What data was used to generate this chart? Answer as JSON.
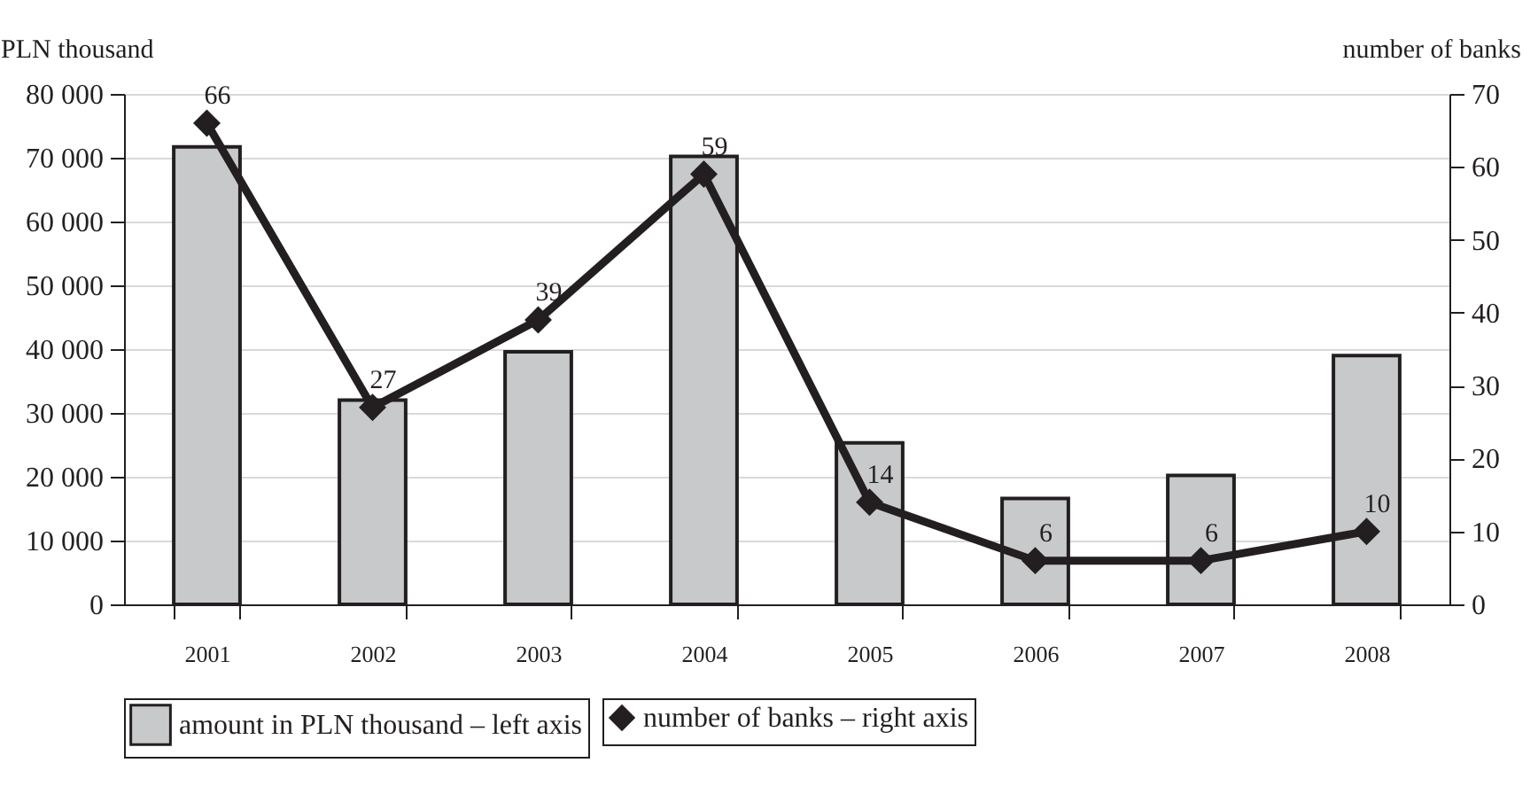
{
  "chart_data": {
    "type": "bar",
    "ylabel": "PLN thousand",
    "y2label": "number of banks",
    "categories": [
      "2001",
      "2002",
      "2003",
      "2004",
      "2005",
      "2006",
      "2007",
      "2008"
    ],
    "series": [
      {
        "name": "amount in PLN thousand – left axis",
        "color": "#c8c9cb",
        "values": [
          71700,
          32000,
          39600,
          70200,
          25300,
          16600,
          20200,
          39000
        ]
      },
      {
        "name": "number of banks – right axis",
        "type": "line",
        "axis": "y2",
        "color": "#231f20",
        "marker": "diamond",
        "values": [
          66,
          27,
          39,
          59,
          14,
          6,
          6,
          10
        ],
        "value_labels": [
          "66",
          "27",
          "39",
          "59",
          "14",
          "6",
          "6",
          "10"
        ]
      }
    ],
    "ylim": [
      0,
      80000
    ],
    "yticks": [
      {
        "value": 0,
        "label": "0"
      },
      {
        "value": 10000,
        "label": "10 000"
      },
      {
        "value": 20000,
        "label": "20 000"
      },
      {
        "value": 30000,
        "label": "30 000"
      },
      {
        "value": 40000,
        "label": "40 000"
      },
      {
        "value": 50000,
        "label": "50 000"
      },
      {
        "value": 60000,
        "label": "60 000"
      },
      {
        "value": 70000,
        "label": "70 000"
      },
      {
        "value": 80000,
        "label": "80 000"
      }
    ],
    "y2lim": [
      0,
      70
    ],
    "y2ticks": [
      0,
      10,
      20,
      30,
      40,
      50,
      60,
      70
    ],
    "grid": "y",
    "legend": "bottom"
  }
}
